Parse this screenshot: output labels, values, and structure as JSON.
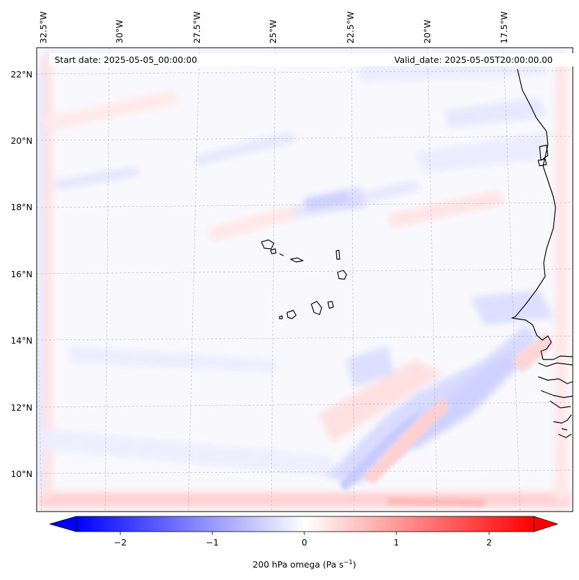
{
  "map": {
    "start_label": "Start date: 2025-05-05_00:00:00",
    "valid_label": "Valid_date: 2025-05-05T20:00:00.00",
    "lon_labels": [
      "32.5°W",
      "30°W",
      "27.5°W",
      "25°W",
      "22.5°W",
      "20°W",
      "17.5°W"
    ],
    "lat_labels": [
      "22°N",
      "20°N",
      "18°N",
      "16°N",
      "14°N",
      "12°N",
      "10°N"
    ],
    "colorbar": {
      "label": "200 hPa omega (Pa s",
      "label_sup": "−1",
      "label_end": ")",
      "ticks": [
        "−2",
        "−1",
        "0",
        "1",
        "2"
      ],
      "low_color": "#0000ff",
      "mid_color": "#ffffff",
      "high_color": "#ff0000"
    },
    "coastline_color": "#000000",
    "grid_color": "#b0b0b0"
  }
}
